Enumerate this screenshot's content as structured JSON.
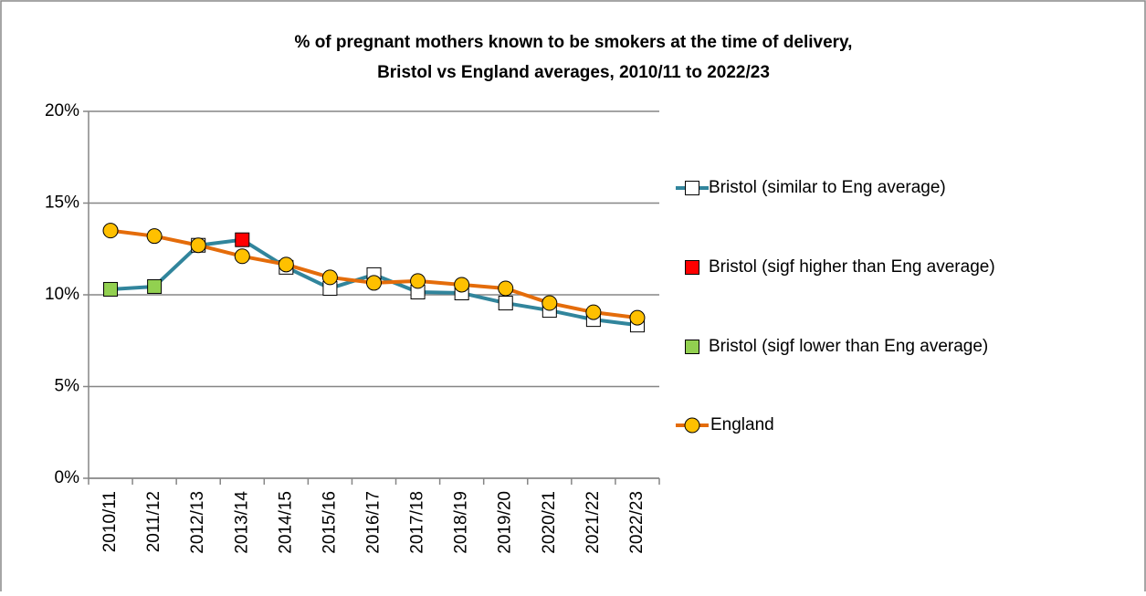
{
  "chart_data": {
    "type": "line",
    "title": [
      "% of pregnant mothers known to be smokers at the time of delivery,",
      "Bristol vs England averages, 2010/11 to 2022/23"
    ],
    "categories": [
      "2010/11",
      "2011/12",
      "2012/13",
      "2013/14",
      "2014/15",
      "2015/16",
      "2016/17",
      "2017/18",
      "2018/19",
      "2019/20",
      "2020/21",
      "2021/22",
      "2022/23"
    ],
    "marker_types": [
      {
        "name": "Bristol (similar to Eng average)",
        "color": "#ffffff"
      },
      {
        "name": "Bristol (sigf higher than Eng average)",
        "color": "#ff0000"
      },
      {
        "name": "Bristol (sigf lower than Eng average)",
        "color": "#92d050"
      }
    ],
    "series": [
      {
        "line_color": "#31859c",
        "marker": "square",
        "values": [
          10.3,
          10.45,
          12.7,
          13.0,
          11.5,
          10.35,
          11.1,
          10.15,
          10.1,
          9.55,
          9.15,
          8.65,
          8.35
        ],
        "marker_type": [
          2,
          2,
          0,
          1,
          0,
          0,
          0,
          0,
          0,
          0,
          0,
          0,
          0
        ]
      },
      {
        "name": "England",
        "line_color": "#e46c0a",
        "marker": "circle",
        "color": "#ffc000",
        "values": [
          13.5,
          13.2,
          12.7,
          12.1,
          11.65,
          10.95,
          10.65,
          10.75,
          10.55,
          10.35,
          9.55,
          9.05,
          8.75
        ]
      }
    ],
    "ylim": [
      0,
      20
    ],
    "yticks": [
      {
        "value": 0,
        "label": "0%"
      },
      {
        "value": 5,
        "label": "5%"
      },
      {
        "value": 10,
        "label": "10%"
      },
      {
        "value": 15,
        "label": "15%"
      },
      {
        "value": 20,
        "label": "20%"
      }
    ],
    "grid": true,
    "legend": "right"
  }
}
